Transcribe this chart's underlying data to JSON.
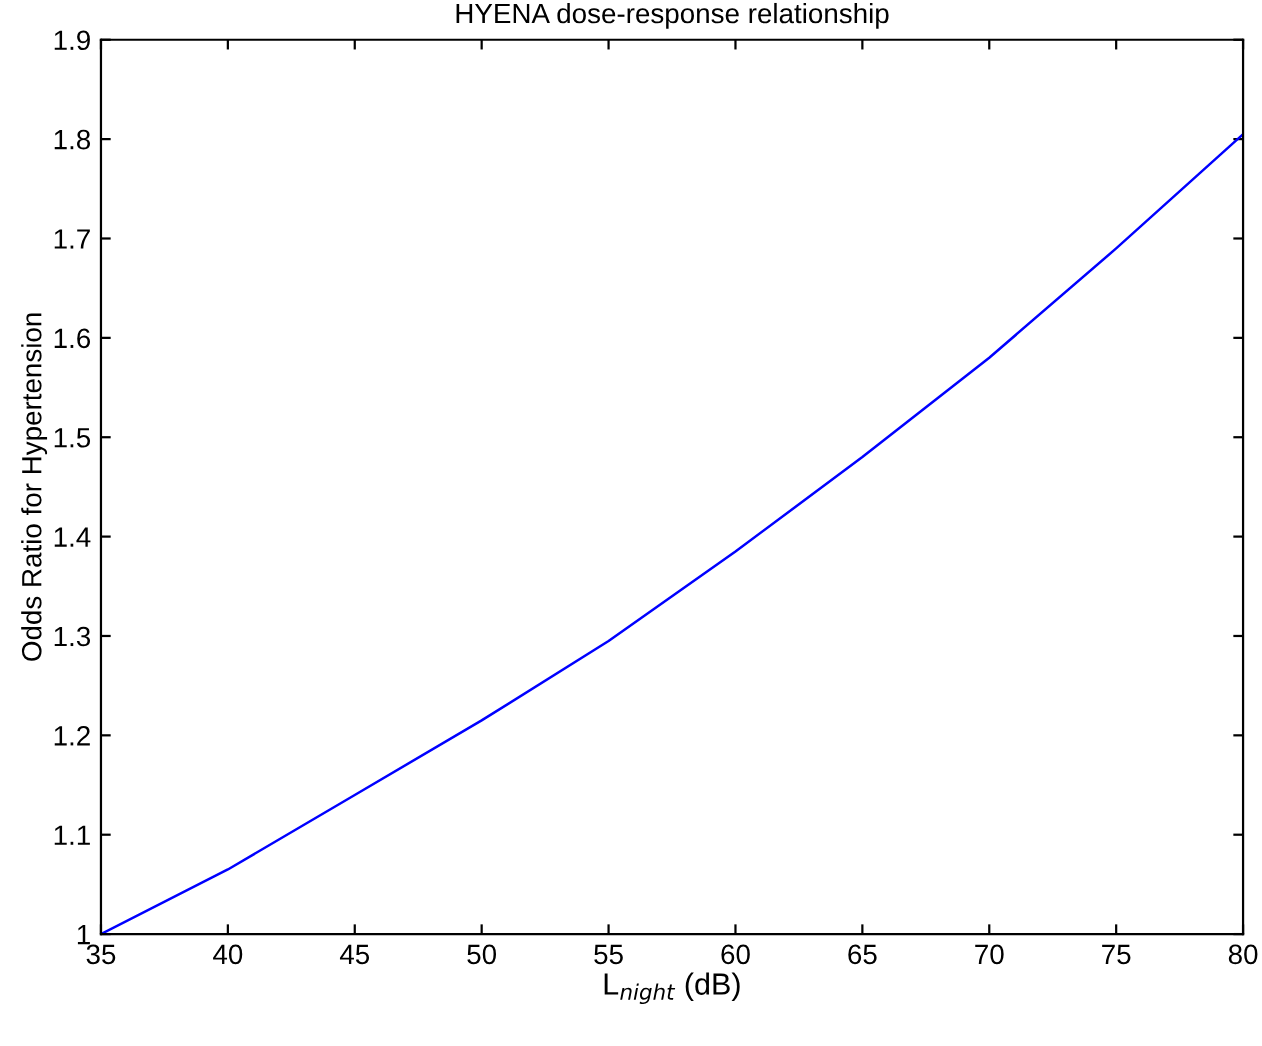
{
  "chart_data": {
    "type": "line",
    "title": "HYENA dose-response relationship",
    "xlabel": "L$_{night}$ (dB)",
    "ylabel": "Odds Ratio for Hypertension",
    "x": [
      35,
      40,
      45,
      50,
      55,
      60,
      65,
      70,
      75,
      80
    ],
    "series": [
      {
        "color": "#0000ff",
        "values": [
          1.0,
          1.065,
          1.14,
          1.215,
          1.295,
          1.385,
          1.48,
          1.58,
          1.69,
          1.805
        ]
      }
    ],
    "xlim": [
      35,
      80
    ],
    "xticks": [
      35,
      40,
      45,
      50,
      55,
      60,
      65,
      70,
      75,
      80
    ],
    "ylim": [
      1,
      1.9
    ],
    "yticks": [
      1,
      1.1,
      1.2,
      1.3,
      1.4,
      1.5,
      1.6,
      1.7,
      1.8,
      1.9
    ],
    "grid": false,
    "legend": false,
    "marker": "none",
    "line_style": "solid"
  }
}
